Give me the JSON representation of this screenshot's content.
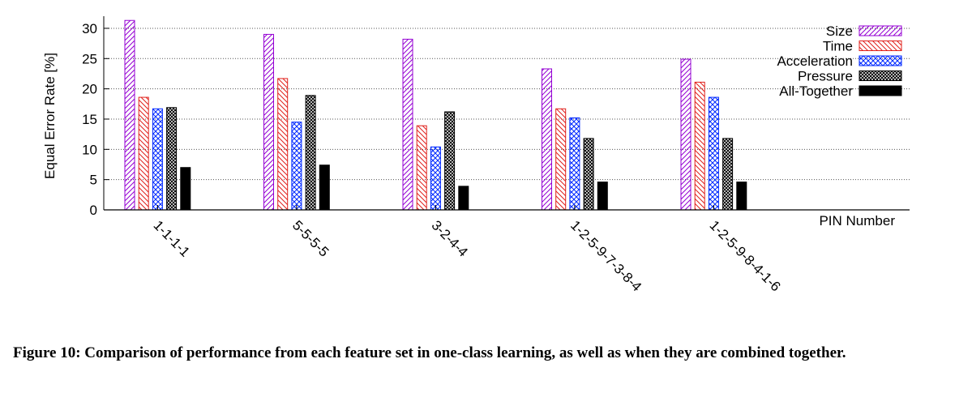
{
  "chart_data": {
    "type": "bar",
    "categories": [
      "1-1-1-1",
      "5-5-5-5",
      "3-2-4-4",
      "1-2-5-9-7-3-8-4",
      "1-2-5-9-8-4-1-6"
    ],
    "series": [
      {
        "name": "Size",
        "values": [
          31.3,
          29.0,
          28.2,
          23.3,
          24.9
        ],
        "color": "#9400d3",
        "pattern": "diag-right"
      },
      {
        "name": "Time",
        "values": [
          18.6,
          21.7,
          13.9,
          16.7,
          21.1
        ],
        "color": "#e0201b",
        "pattern": "diag-left"
      },
      {
        "name": "Acceleration",
        "values": [
          16.7,
          14.5,
          10.4,
          15.2,
          18.6
        ],
        "color": "#0028ff",
        "pattern": "crosshatch"
      },
      {
        "name": "Pressure",
        "values": [
          16.9,
          18.9,
          16.2,
          11.8,
          11.8
        ],
        "color": "#000000",
        "pattern": "dense-crosshatch"
      },
      {
        "name": "All-Together",
        "values": [
          7.0,
          7.4,
          3.9,
          4.6,
          4.6
        ],
        "color": "#000000",
        "pattern": "solid"
      }
    ],
    "title": "",
    "xlabel": "PIN Number",
    "ylabel": "Equal Error Rate [%]",
    "ylim": [
      0,
      32
    ],
    "yticks": [
      0,
      5,
      10,
      15,
      20,
      25,
      30
    ],
    "grid": "horizontal-dotted",
    "legend_position": "top-right"
  },
  "caption": "Figure 10: Comparison of performance from each feature set in one-class learning, as well as when they are combined together."
}
